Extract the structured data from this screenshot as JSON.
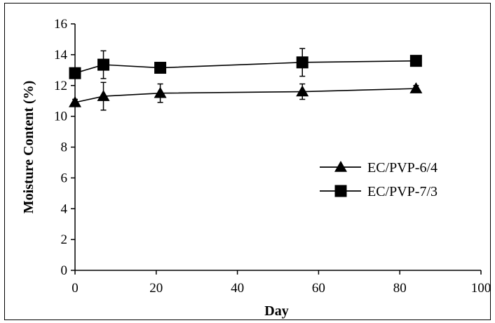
{
  "chart_data": {
    "type": "line",
    "title": "",
    "xlabel": "Day",
    "ylabel": "Moisture Content (%)",
    "xlim": [
      0,
      100
    ],
    "ylim": [
      0,
      16
    ],
    "x_ticks": [
      0,
      20,
      40,
      60,
      80,
      100
    ],
    "y_ticks": [
      0,
      2,
      4,
      6,
      8,
      10,
      12,
      14,
      16
    ],
    "grid": false,
    "legend_position": "right",
    "series": [
      {
        "name": "EC/PVP-6/4",
        "marker": "triangle",
        "color": "#000000",
        "x": [
          0,
          7,
          21,
          56,
          84
        ],
        "y": [
          10.9,
          11.3,
          11.5,
          11.6,
          11.8
        ],
        "error": [
          0.2,
          0.9,
          0.6,
          0.5,
          0.2
        ]
      },
      {
        "name": "EC/PVP-7/3",
        "marker": "square",
        "color": "#000000",
        "x": [
          0,
          7,
          21,
          56,
          84
        ],
        "y": [
          12.8,
          13.35,
          13.15,
          13.5,
          13.6
        ],
        "error": [
          0.2,
          0.9,
          0.2,
          0.9,
          0.3
        ]
      }
    ]
  }
}
